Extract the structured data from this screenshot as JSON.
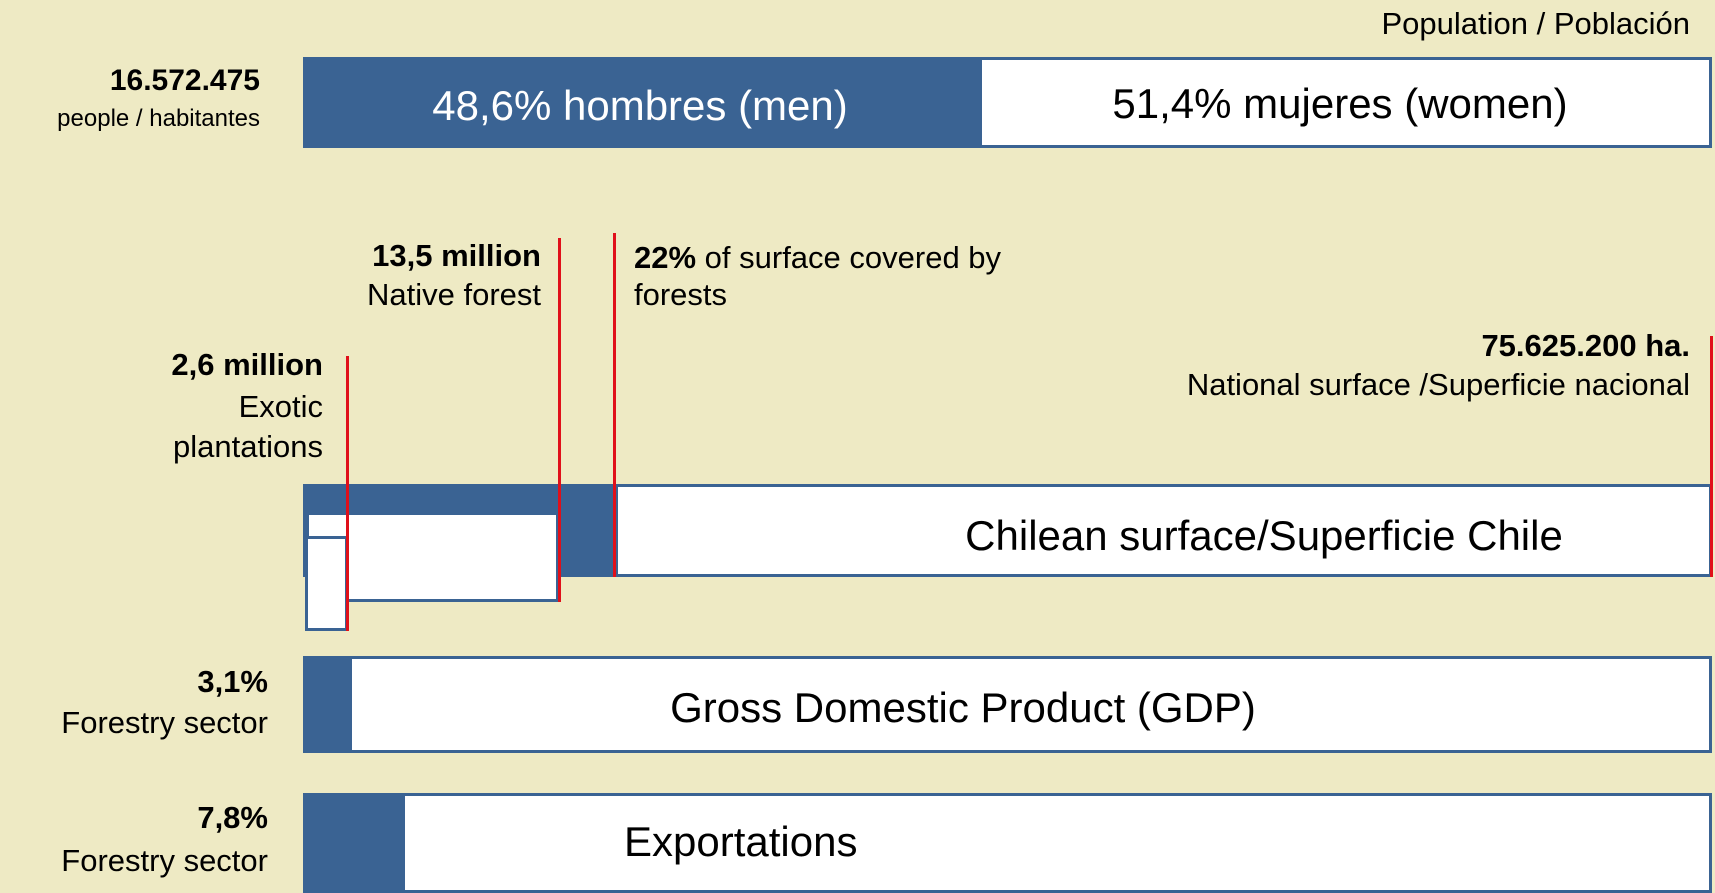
{
  "population": {
    "title": "Population / Población",
    "total": "16.572.475",
    "total_unit": "people / habitantes",
    "men": "48,6% hombres (men)",
    "women": "51,4% mujeres (women)"
  },
  "surface": {
    "native_value": "13,5 million",
    "native_label": "Native forest",
    "forest_share": "22%",
    "forest_share_text": " of surface covered by",
    "forest_share_text2": "forests",
    "exotic_value": "2,6 million",
    "exotic_label1": "Exotic",
    "exotic_label2": "plantations",
    "national_value": "75.625.200 ha.",
    "national_label": "National surface /Superficie nacional",
    "bar_label": "Chilean surface/Superficie Chile"
  },
  "gdp": {
    "value": "3,1%",
    "label": "Forestry sector",
    "bar_label": "Gross Domestic Product (GDP)"
  },
  "exports": {
    "value": "7,8%",
    "label": "Forestry sector",
    "bar_label": "Exportations"
  }
}
